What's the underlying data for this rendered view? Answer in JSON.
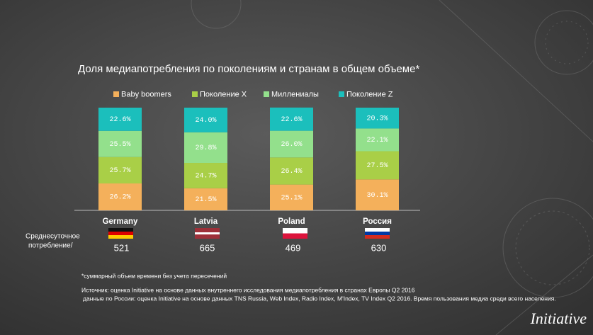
{
  "chart_data": {
    "type": "stacked_bar",
    "title": "Доля медиапотребления по поколениям и странам в общем объеме*",
    "categories": [
      "Germany",
      "Latvia",
      "Poland",
      "Россия"
    ],
    "series": [
      {
        "name": "Baby boomers",
        "color": "#f4b05b",
        "values": [
          26.2,
          21.5,
          25.1,
          30.1
        ],
        "value_labels": [
          "26.2%",
          "21.5%",
          "25.1%",
          "30.1%"
        ]
      },
      {
        "name": "Поколение X",
        "color": "#a9cf47",
        "values": [
          25.7,
          24.7,
          26.4,
          27.5
        ],
        "value_labels": [
          "25.7%",
          "24.7%",
          "26.4%",
          "27.5%"
        ]
      },
      {
        "name": "Миллениалы",
        "color": "#93e08c",
        "values": [
          25.5,
          29.8,
          26.0,
          22.1
        ],
        "value_labels": [
          "25.5%",
          "29.8%",
          "26.0%",
          "22.1%"
        ]
      },
      {
        "name": "Поколение Z",
        "color": "#1bbfbc",
        "values": [
          22.6,
          24.0,
          22.6,
          20.3
        ],
        "value_labels": [
          "22.6%",
          "24.0%",
          "22.6%",
          "20.3%"
        ]
      }
    ],
    "ylim": [
      0,
      100
    ],
    "daily_consumption": {
      "label_lines": [
        "Среднесуточное",
        "потребление/"
      ],
      "values": [
        521,
        665,
        469,
        630
      ]
    }
  },
  "footnotes": [
    "*суммарный объем времени без учета пересечений",
    "Источник: оценка  Initiative на основе данных внутреннего исследования медиапотребления в странах Европы Q2 2016",
    "данные по России: оценка Initiative на основе  данных TNS Russia, Web Index, Radio Index, M'Index, TV Index Q2 2016. Время пользования медиа среди всего населения."
  ],
  "logo": "Initiative"
}
